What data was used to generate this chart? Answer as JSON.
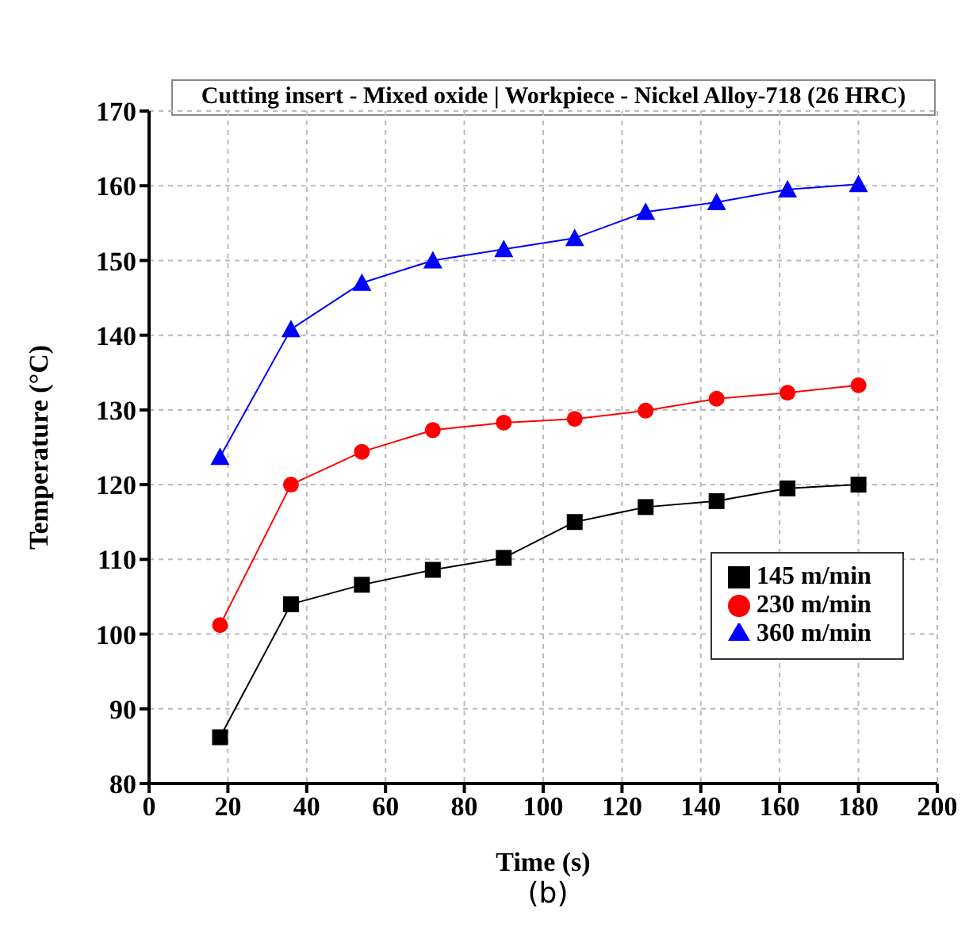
{
  "chart_data": {
    "type": "line",
    "title": "Cutting insert - Mixed oxide | Workpiece - Nickel Alloy-718 (26 HRC)",
    "xlabel": "Time (s)",
    "ylabel": "Temperature (°C)",
    "annotations": [
      "(b)"
    ],
    "x": [
      18,
      36,
      54,
      72,
      90,
      108,
      126,
      144,
      162,
      180
    ],
    "series": [
      {
        "name": "145 m/min",
        "color": "#000000",
        "marker": "square",
        "values": [
          86.2,
          104,
          106.6,
          108.6,
          110.2,
          115,
          117,
          117.8,
          119.5,
          120
        ]
      },
      {
        "name": "230 m/min",
        "color": "#ff0000",
        "marker": "circle",
        "values": [
          101.2,
          120,
          124.4,
          127.3,
          128.3,
          128.8,
          129.9,
          131.5,
          132.3,
          133.3
        ]
      },
      {
        "name": "360 m/min",
        "color": "#0000ff",
        "marker": "triangle",
        "values": [
          123.7,
          140.8,
          147,
          150,
          151.5,
          153,
          156.5,
          157.8,
          159.5,
          160.2
        ]
      }
    ],
    "xlim": [
      0,
      200
    ],
    "xticks": [
      0,
      20,
      40,
      60,
      80,
      100,
      120,
      140,
      160,
      180,
      200
    ],
    "ylim": [
      80,
      170
    ],
    "yticks": [
      80,
      90,
      100,
      110,
      120,
      130,
      140,
      150,
      160,
      170
    ],
    "grid": true,
    "legend": "right",
    "line_style": "solid"
  }
}
